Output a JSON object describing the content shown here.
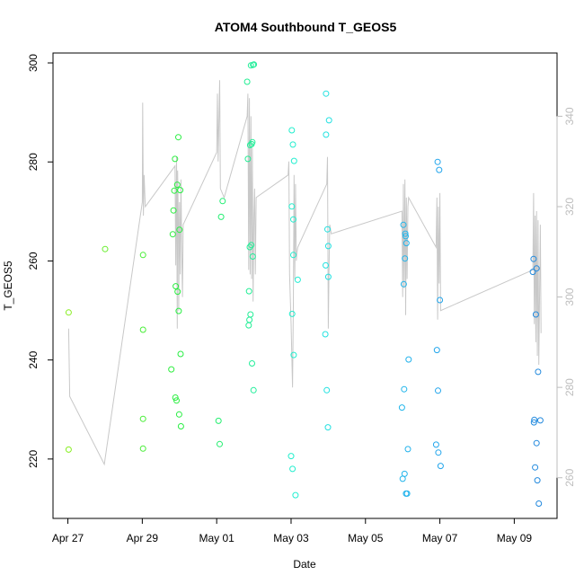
{
  "chart_data": {
    "type": "scatter",
    "title": "ATOM4 Southbound T_GEOS5",
    "xlabel": "Date",
    "ylabel": "T_GEOS5",
    "x_ticks": [
      "Apr 27",
      "Apr 29",
      "May 01",
      "May 03",
      "May 05",
      "May 07",
      "May 09"
    ],
    "xlim": [
      -0.4,
      13.15
    ],
    "y_ticks": [
      220,
      240,
      260,
      280,
      300
    ],
    "ylim": [
      208,
      302
    ],
    "y2_ticks": [
      260,
      280,
      300,
      320,
      340
    ],
    "y2lim": [
      251,
      354
    ],
    "grid": false,
    "legend": "none",
    "point_color_ramp": [
      "#88ee22",
      "#22ee44",
      "#22eedd",
      "#22aaee",
      "#2288dd"
    ],
    "line_color": "#c8c8c8",
    "series": [
      {
        "kind": "points",
        "axis": "left",
        "points": [
          [
            0.02,
            249.6
          ],
          [
            0.02,
            221.9
          ],
          [
            1.0,
            262.4
          ],
          [
            2.02,
            261.2
          ],
          [
            2.02,
            246.1
          ],
          [
            2.02,
            228.1
          ],
          [
            2.02,
            222.1
          ],
          [
            2.78,
            238.1
          ],
          [
            2.82,
            265.4
          ],
          [
            2.84,
            270.2
          ],
          [
            2.86,
            274.2
          ],
          [
            2.88,
            280.6
          ],
          [
            2.89,
            232.4
          ],
          [
            2.9,
            254.9
          ],
          [
            2.92,
            231.8
          ],
          [
            2.94,
            275.4
          ],
          [
            2.95,
            253.8
          ],
          [
            2.97,
            285.0
          ],
          [
            2.98,
            249.9
          ],
          [
            2.99,
            229.0
          ],
          [
            3.0,
            266.3
          ],
          [
            3.02,
            274.3
          ],
          [
            3.03,
            241.2
          ],
          [
            3.04,
            226.6
          ],
          [
            4.05,
            227.7
          ],
          [
            4.08,
            223.0
          ],
          [
            4.12,
            268.9
          ],
          [
            4.16,
            272.1
          ],
          [
            4.82,
            296.2
          ],
          [
            4.84,
            280.6
          ],
          [
            4.86,
            247.0
          ],
          [
            4.87,
            253.9
          ],
          [
            4.88,
            248.1
          ],
          [
            4.89,
            262.8
          ],
          [
            4.9,
            283.4
          ],
          [
            4.91,
            249.2
          ],
          [
            4.92,
            299.5
          ],
          [
            4.93,
            263.2
          ],
          [
            4.94,
            283.6
          ],
          [
            4.95,
            239.3
          ],
          [
            4.96,
            284.0
          ],
          [
            4.97,
            260.9
          ],
          [
            4.98,
            299.6
          ],
          [
            4.99,
            233.9
          ],
          [
            5.0,
            299.7
          ],
          [
            6.0,
            220.6
          ],
          [
            6.02,
            286.4
          ],
          [
            6.02,
            271.0
          ],
          [
            6.03,
            249.3
          ],
          [
            6.04,
            218.0
          ],
          [
            6.05,
            283.5
          ],
          [
            6.06,
            261.2
          ],
          [
            6.06,
            268.4
          ],
          [
            6.07,
            241.0
          ],
          [
            6.08,
            280.2
          ],
          [
            6.12,
            212.7
          ],
          [
            6.18,
            256.2
          ],
          [
            6.92,
            245.2
          ],
          [
            6.93,
            259.1
          ],
          [
            6.94,
            293.8
          ],
          [
            6.94,
            285.5
          ],
          [
            6.96,
            233.9
          ],
          [
            6.98,
            266.4
          ],
          [
            6.99,
            226.4
          ],
          [
            7.0,
            263.0
          ],
          [
            7.0,
            256.8
          ],
          [
            7.02,
            288.4
          ],
          [
            8.98,
            230.4
          ],
          [
            9.0,
            216.0
          ],
          [
            9.02,
            267.3
          ],
          [
            9.03,
            255.3
          ],
          [
            9.04,
            234.1
          ],
          [
            9.05,
            217.0
          ],
          [
            9.06,
            260.5
          ],
          [
            9.07,
            265.5
          ],
          [
            9.08,
            265.0
          ],
          [
            9.09,
            213.0
          ],
          [
            9.1,
            263.6
          ],
          [
            9.12,
            213.0
          ],
          [
            9.14,
            222.0
          ],
          [
            9.16,
            240.1
          ],
          [
            9.9,
            222.9
          ],
          [
            9.92,
            242.0
          ],
          [
            9.94,
            280.0
          ],
          [
            9.95,
            233.8
          ],
          [
            9.96,
            221.3
          ],
          [
            9.98,
            278.4
          ],
          [
            10.0,
            252.1
          ],
          [
            10.02,
            218.6
          ],
          [
            12.5,
            257.8
          ],
          [
            12.52,
            260.4
          ],
          [
            12.53,
            227.4
          ],
          [
            12.54,
            227.9
          ],
          [
            12.56,
            218.3
          ],
          [
            12.58,
            249.2
          ],
          [
            12.6,
            223.2
          ],
          [
            12.6,
            258.5
          ],
          [
            12.62,
            215.7
          ],
          [
            12.64,
            237.6
          ],
          [
            12.66,
            211.0
          ],
          [
            12.7,
            227.8
          ]
        ]
      },
      {
        "kind": "line",
        "axis": "right",
        "points": [
          [
            0.02,
            293
          ],
          [
            0.05,
            278
          ],
          [
            0.98,
            263
          ],
          [
            2.0,
            321
          ],
          [
            2.01,
            343
          ],
          [
            2.03,
            318
          ],
          [
            2.05,
            327
          ],
          [
            2.08,
            320
          ],
          [
            2.88,
            329
          ],
          [
            2.9,
            307
          ],
          [
            2.92,
            331
          ],
          [
            2.94,
            293
          ],
          [
            2.95,
            328
          ],
          [
            2.97,
            317
          ],
          [
            2.98,
            297
          ],
          [
            3.0,
            321
          ],
          [
            3.02,
            305
          ],
          [
            3.04,
            326
          ],
          [
            3.06,
            310
          ],
          [
            3.08,
            300
          ],
          [
            3.1,
            316
          ],
          [
            4.0,
            332
          ],
          [
            4.02,
            345
          ],
          [
            4.04,
            330
          ],
          [
            4.08,
            348
          ],
          [
            4.1,
            324
          ],
          [
            4.2,
            322
          ],
          [
            4.82,
            340
          ],
          [
            4.84,
            345
          ],
          [
            4.86,
            306
          ],
          [
            4.88,
            344
          ],
          [
            4.9,
            305
          ],
          [
            4.92,
            340
          ],
          [
            4.94,
            304
          ],
          [
            4.96,
            333
          ],
          [
            4.98,
            299
          ],
          [
            5.0,
            318
          ],
          [
            5.02,
            324
          ],
          [
            5.04,
            305
          ],
          [
            5.06,
            322
          ],
          [
            5.92,
            327
          ],
          [
            5.94,
            330
          ],
          [
            5.96,
            305
          ],
          [
            6.0,
            294
          ],
          [
            6.02,
            287
          ],
          [
            6.04,
            280
          ],
          [
            6.06,
            298
          ],
          [
            6.08,
            327
          ],
          [
            6.1,
            304
          ],
          [
            6.12,
            325
          ],
          [
            6.14,
            308
          ],
          [
            6.16,
            310
          ],
          [
            6.18,
            311
          ],
          [
            6.96,
            325
          ],
          [
            6.98,
            331
          ],
          [
            7.0,
            293
          ],
          [
            7.02,
            306
          ],
          [
            7.04,
            316
          ],
          [
            7.08,
            314
          ],
          [
            8.98,
            319
          ],
          [
            9.0,
            300
          ],
          [
            9.02,
            325
          ],
          [
            9.04,
            302
          ],
          [
            9.06,
            326
          ],
          [
            9.08,
            296
          ],
          [
            9.1,
            322
          ],
          [
            9.12,
            304
          ],
          [
            9.14,
            320
          ],
          [
            9.16,
            322
          ],
          [
            9.9,
            311
          ],
          [
            9.92,
            322
          ],
          [
            9.94,
            295
          ],
          [
            9.96,
            320
          ],
          [
            9.98,
            303
          ],
          [
            10.0,
            323
          ],
          [
            10.02,
            297
          ],
          [
            12.5,
            306
          ],
          [
            12.52,
            323
          ],
          [
            12.54,
            294
          ],
          [
            12.56,
            318
          ],
          [
            12.58,
            290
          ],
          [
            12.6,
            319
          ],
          [
            12.62,
            287
          ],
          [
            12.64,
            317
          ],
          [
            12.66,
            285
          ],
          [
            12.7,
            316
          ],
          [
            12.72,
            292
          ]
        ]
      }
    ]
  }
}
